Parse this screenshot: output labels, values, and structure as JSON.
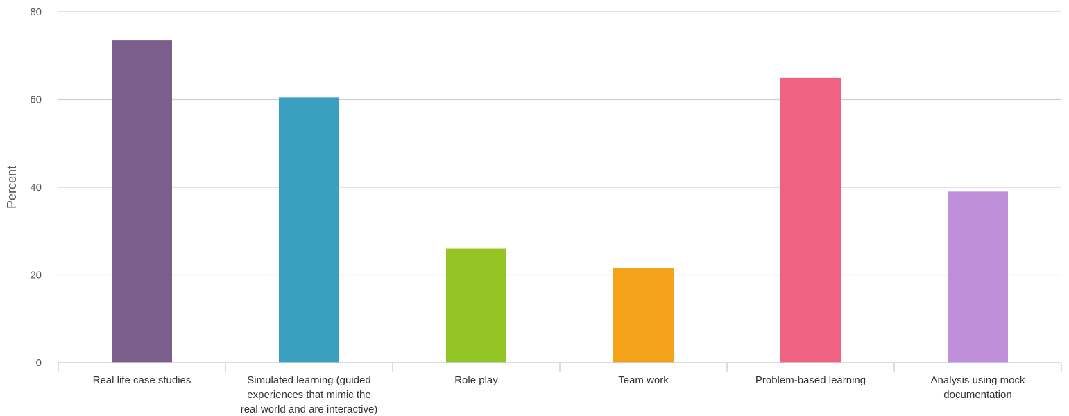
{
  "chart_data": {
    "type": "bar",
    "title": "",
    "xlabel": "",
    "ylabel": "Percent",
    "ylim": [
      0,
      80
    ],
    "yticks": [
      0,
      20,
      40,
      60,
      80
    ],
    "grid": true,
    "legend": "none",
    "categories": [
      "Real life case studies",
      "Simulated learning (guided experiences that mimic the real world and are interactive)",
      "Role play",
      "Team work",
      "Problem-based learning",
      "Analysis using mock documentation"
    ],
    "category_label_lines": [
      [
        "Real life case studies"
      ],
      [
        "Simulated learning (guided",
        "experiences that mimic the",
        "real world and are interactive)"
      ],
      [
        "Role play"
      ],
      [
        "Team work"
      ],
      [
        "Problem-based learning"
      ],
      [
        "Analysis using mock",
        "documentation"
      ]
    ],
    "values": [
      73.5,
      60.5,
      26,
      21.5,
      65,
      39
    ],
    "colors": [
      "#7b5e8c",
      "#3ba0c0",
      "#95c525",
      "#f4a21a",
      "#ef6282",
      "#c08fdb"
    ]
  }
}
